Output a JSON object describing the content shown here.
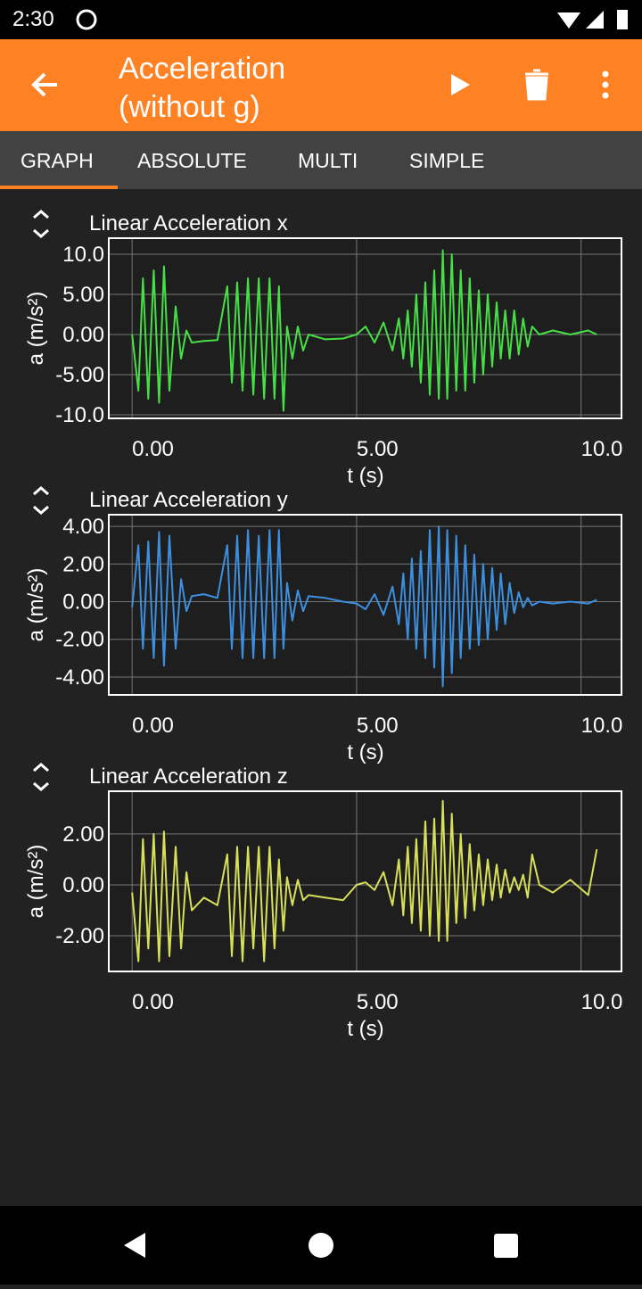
{
  "status_bar": {
    "time": "2:30"
  },
  "app_bar": {
    "title": "Acceleration (without g)"
  },
  "tabs": [
    "GRAPH",
    "ABSOLUTE",
    "MULTI",
    "SIMPLE"
  ],
  "chart_data": [
    {
      "type": "line",
      "title": "Linear Acceleration x",
      "x_label": "t (s)",
      "y_label": "a (m/s²)",
      "color": "#46e046",
      "grid": true,
      "xlim": [
        -0.52,
        10.9
      ],
      "ylim": [
        -10.44,
        12.0
      ],
      "xticks": [
        {
          "value": 0,
          "label": "0.00"
        },
        {
          "value": 5,
          "label": "5.00"
        },
        {
          "value": 10,
          "label": "10.0"
        }
      ],
      "yticks": [
        {
          "value": 10,
          "label": "10.0"
        },
        {
          "value": 5,
          "label": "5.00"
        },
        {
          "value": 0,
          "label": "0.00"
        },
        {
          "value": -5,
          "label": "-5.00"
        },
        {
          "value": -10,
          "label": "-10.0"
        }
      ],
      "x": [
        0,
        0.14,
        0.24,
        0.36,
        0.48,
        0.6,
        0.71,
        0.83,
        0.97,
        1.09,
        1.21,
        1.33,
        1.6,
        1.9,
        2.12,
        2.22,
        2.34,
        2.46,
        2.58,
        2.7,
        2.82,
        2.94,
        3.06,
        3.17,
        3.27,
        3.37,
        3.45,
        3.57,
        3.69,
        3.81,
        3.93,
        4.3,
        4.7,
        5.0,
        5.2,
        5.4,
        5.6,
        5.8,
        5.94,
        6.04,
        6.14,
        6.23,
        6.33,
        6.43,
        6.53,
        6.63,
        6.73,
        6.83,
        6.92,
        7.02,
        7.12,
        7.22,
        7.32,
        7.42,
        7.52,
        7.62,
        7.72,
        7.82,
        7.92,
        8.02,
        8.12,
        8.21,
        8.31,
        8.41,
        8.51,
        8.61,
        8.71,
        8.81,
        8.91,
        9.07,
        9.37,
        9.76,
        10.16,
        10.35
      ],
      "values": [
        0,
        -7,
        7,
        -8,
        8,
        -8.5,
        8.5,
        -7,
        3.5,
        -3,
        0.5,
        -1,
        -0.8,
        -0.7,
        6,
        -6,
        6.5,
        -7,
        7,
        -7.5,
        7,
        -8,
        7,
        -8,
        6,
        -9.5,
        1,
        -3,
        1,
        -2,
        0,
        -0.6,
        -0.5,
        0,
        1,
        -1,
        1.5,
        -2,
        2,
        -3,
        3,
        -4,
        5,
        -6,
        6.5,
        -7.5,
        8,
        -8,
        10.5,
        -8,
        10,
        -7,
        8,
        -7,
        7,
        -6,
        5.5,
        -5,
        5,
        -4,
        4,
        -3,
        3,
        -3,
        3,
        -2.5,
        2,
        -1.5,
        1,
        0,
        0.5,
        0,
        0.5,
        0
      ]
    },
    {
      "type": "line",
      "title": "Linear Acceleration y",
      "x_label": "t (s)",
      "y_label": "a (m/s²)",
      "color": "#3d8fe0",
      "grid": true,
      "xlim": [
        -0.52,
        10.9
      ],
      "ylim": [
        -4.95,
        4.62
      ],
      "xticks": [
        {
          "value": 0,
          "label": "0.00"
        },
        {
          "value": 5,
          "label": "5.00"
        },
        {
          "value": 10,
          "label": "10.0"
        }
      ],
      "yticks": [
        {
          "value": 4,
          "label": "4.00"
        },
        {
          "value": 2,
          "label": "2.00"
        },
        {
          "value": 0,
          "label": "0.00"
        },
        {
          "value": -2,
          "label": "-2.00"
        },
        {
          "value": -4,
          "label": "-4.00"
        }
      ],
      "x": [
        0,
        0.14,
        0.24,
        0.36,
        0.48,
        0.6,
        0.71,
        0.83,
        0.97,
        1.09,
        1.21,
        1.33,
        1.6,
        1.9,
        2.12,
        2.22,
        2.34,
        2.46,
        2.58,
        2.7,
        2.82,
        2.94,
        3.06,
        3.17,
        3.27,
        3.37,
        3.45,
        3.57,
        3.69,
        3.81,
        3.93,
        4.3,
        4.7,
        5.0,
        5.2,
        5.4,
        5.6,
        5.8,
        5.94,
        6.04,
        6.14,
        6.23,
        6.33,
        6.43,
        6.53,
        6.63,
        6.73,
        6.83,
        6.92,
        7.02,
        7.12,
        7.22,
        7.32,
        7.42,
        7.52,
        7.62,
        7.72,
        7.82,
        7.92,
        8.02,
        8.12,
        8.21,
        8.31,
        8.41,
        8.51,
        8.61,
        8.71,
        8.81,
        8.91,
        9.07,
        9.37,
        9.76,
        10.16,
        10.35
      ],
      "values": [
        -0.3,
        3,
        -2.5,
        3.2,
        -3,
        3.7,
        -3.4,
        3.5,
        -2.5,
        1.2,
        -0.5,
        0.3,
        0.4,
        0.2,
        3,
        -2.5,
        3.5,
        -3,
        3.8,
        -3,
        3.5,
        -3,
        3.8,
        -3,
        3.8,
        -2.5,
        1,
        -1,
        0.6,
        -0.5,
        0.3,
        0.2,
        0,
        -0.1,
        -0.4,
        0.4,
        -0.7,
        0.8,
        -1.2,
        1.5,
        -2,
        2.3,
        -2.5,
        2.7,
        -3,
        3.8,
        -3.5,
        4,
        -4.5,
        3.8,
        -3.8,
        3.5,
        -3,
        3,
        -2.5,
        2.5,
        -2.3,
        2,
        -2,
        1.8,
        -1.5,
        1.5,
        -1.2,
        1,
        -0.6,
        0.5,
        -0.3,
        0.2,
        -0.2,
        0,
        -0.1,
        0,
        -0.1,
        0.1
      ]
    },
    {
      "type": "line",
      "title": "Linear Acceleration z",
      "x_label": "t (s)",
      "y_label": "a (m/s²)",
      "color": "#d8e05a",
      "grid": true,
      "xlim": [
        -0.52,
        10.9
      ],
      "ylim": [
        -3.4,
        3.68
      ],
      "xticks": [
        {
          "value": 0,
          "label": "0.00"
        },
        {
          "value": 5,
          "label": "5.00"
        },
        {
          "value": 10,
          "label": "10.0"
        }
      ],
      "yticks": [
        {
          "value": 2,
          "label": "2.00"
        },
        {
          "value": 0,
          "label": "0.00"
        },
        {
          "value": -2,
          "label": "-2.00"
        }
      ],
      "x": [
        0,
        0.14,
        0.24,
        0.36,
        0.48,
        0.6,
        0.71,
        0.83,
        0.97,
        1.09,
        1.21,
        1.33,
        1.6,
        1.9,
        2.12,
        2.22,
        2.34,
        2.46,
        2.58,
        2.7,
        2.82,
        2.94,
        3.06,
        3.17,
        3.27,
        3.37,
        3.45,
        3.57,
        3.69,
        3.81,
        3.93,
        4.3,
        4.7,
        5.0,
        5.2,
        5.4,
        5.6,
        5.8,
        5.94,
        6.04,
        6.14,
        6.23,
        6.33,
        6.43,
        6.53,
        6.63,
        6.73,
        6.83,
        6.92,
        7.02,
        7.12,
        7.22,
        7.32,
        7.42,
        7.52,
        7.62,
        7.72,
        7.82,
        7.92,
        8.02,
        8.12,
        8.21,
        8.31,
        8.41,
        8.51,
        8.61,
        8.71,
        8.81,
        8.91,
        9.07,
        9.37,
        9.76,
        10.16,
        10.35
      ],
      "values": [
        -0.3,
        -3,
        1.8,
        -2.5,
        2,
        -3,
        2.1,
        -2.8,
        1.5,
        -2.5,
        0.5,
        -1,
        -0.5,
        -0.8,
        1.2,
        -2.8,
        1.5,
        -3,
        1.5,
        -2.5,
        1.5,
        -3,
        1.5,
        -2.5,
        1,
        -1.8,
        0.3,
        -0.8,
        0.2,
        -0.6,
        -0.4,
        -0.5,
        -0.6,
        0,
        0.1,
        -0.2,
        0.5,
        -0.8,
        1,
        -1.2,
        1.5,
        -1.5,
        1.8,
        -1.8,
        2.5,
        -2,
        2.6,
        -2.2,
        3.3,
        -2.2,
        2.8,
        -1.5,
        2,
        -1.3,
        1.6,
        -1,
        1.2,
        -0.8,
        1,
        -0.6,
        0.8,
        -0.5,
        0.6,
        -0.3,
        0.3,
        -0.2,
        0.4,
        -0.5,
        1.2,
        0,
        -0.3,
        0.2,
        -0.4,
        1.4
      ]
    }
  ]
}
